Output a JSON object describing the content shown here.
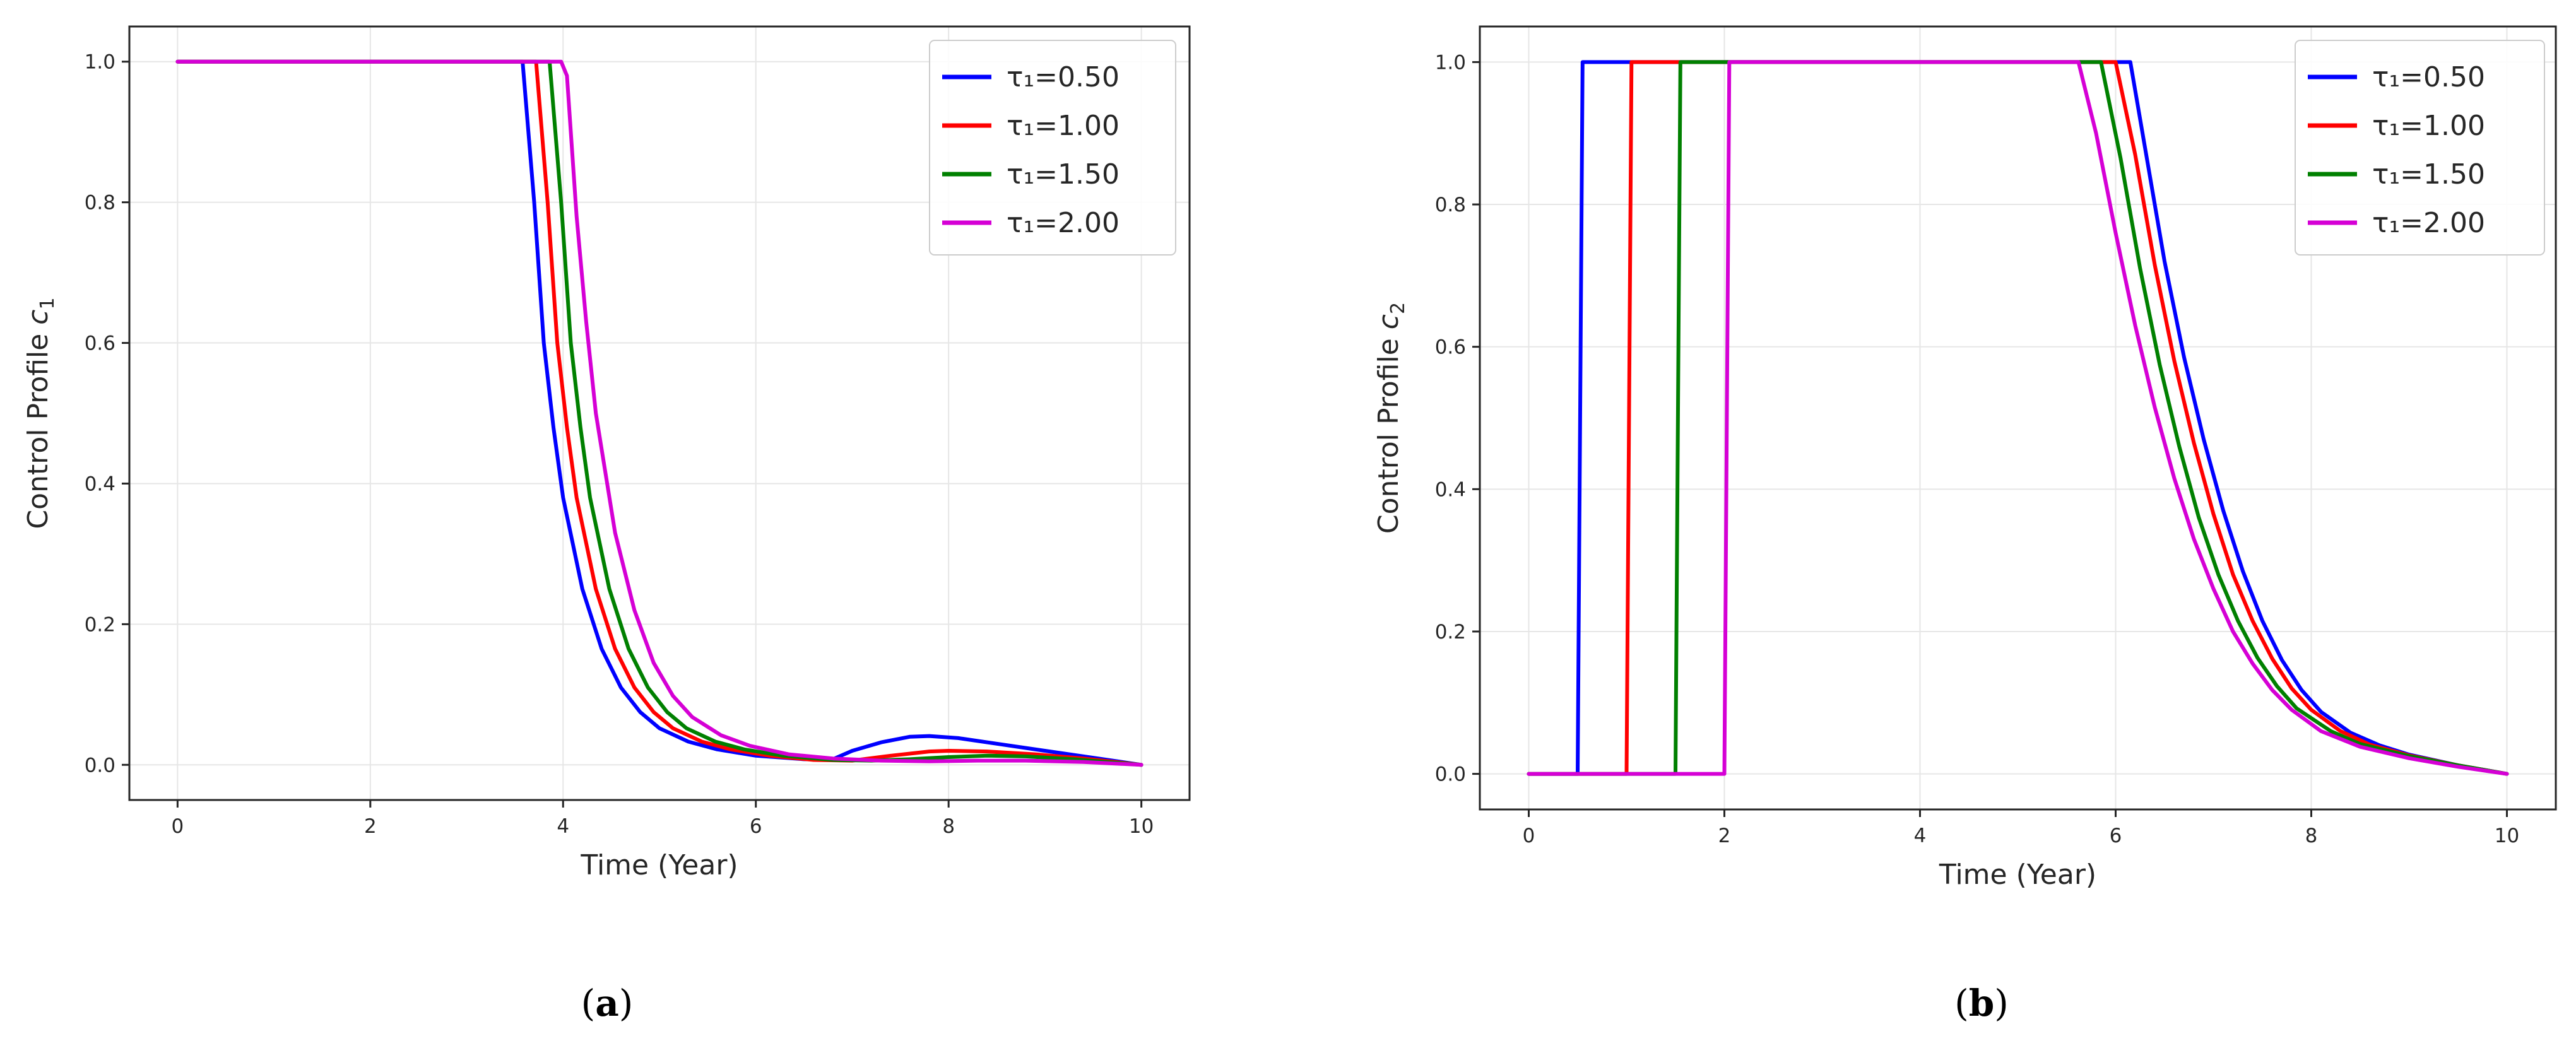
{
  "chart_data": [
    {
      "type": "line",
      "panel_label": "a",
      "xlabel": "Time (Year)",
      "ylabel": "Control Profile",
      "ylabel_symbol": "c",
      "ylabel_subscript": "1",
      "xlim": [
        -0.5,
        10.5
      ],
      "ylim": [
        -0.05,
        1.05
      ],
      "xticks": [
        0,
        2,
        4,
        6,
        8,
        10
      ],
      "yticks": [
        0.0,
        0.2,
        0.4,
        0.6,
        0.8,
        1.0
      ],
      "grid": true,
      "legend_position": "top-right",
      "series": [
        {
          "name": "τ₁=0.50",
          "color": "#0000ff",
          "x": [
            0,
            3.58,
            3.7,
            3.8,
            3.9,
            4.0,
            4.2,
            4.4,
            4.6,
            4.8,
            5.0,
            5.3,
            5.6,
            6.0,
            6.5,
            6.8,
            7.0,
            7.3,
            7.6,
            7.8,
            8.1,
            8.5,
            9.0,
            9.5,
            10.0
          ],
          "y": [
            1.0,
            1.0,
            0.8,
            0.6,
            0.48,
            0.38,
            0.25,
            0.165,
            0.11,
            0.075,
            0.052,
            0.033,
            0.022,
            0.013,
            0.008,
            0.008,
            0.02,
            0.032,
            0.04,
            0.041,
            0.038,
            0.03,
            0.02,
            0.01,
            0.0
          ]
        },
        {
          "name": "τ₁=1.00",
          "color": "#ff0000",
          "x": [
            0,
            3.72,
            3.84,
            3.94,
            4.04,
            4.14,
            4.34,
            4.54,
            4.74,
            4.94,
            5.14,
            5.44,
            5.74,
            6.14,
            6.6,
            7.0,
            7.4,
            7.8,
            8.0,
            8.4,
            8.9,
            9.4,
            10.0
          ],
          "y": [
            1.0,
            1.0,
            0.8,
            0.6,
            0.48,
            0.38,
            0.25,
            0.165,
            0.11,
            0.075,
            0.052,
            0.033,
            0.022,
            0.013,
            0.007,
            0.006,
            0.013,
            0.019,
            0.02,
            0.019,
            0.015,
            0.009,
            0.0
          ]
        },
        {
          "name": "τ₁=1.50",
          "color": "#008000",
          "x": [
            0,
            3.86,
            3.98,
            4.08,
            4.18,
            4.28,
            4.48,
            4.68,
            4.88,
            5.08,
            5.28,
            5.58,
            5.88,
            6.28,
            6.8,
            7.2,
            7.6,
            8.0,
            8.4,
            8.8,
            9.3,
            10.0
          ],
          "y": [
            1.0,
            1.0,
            0.8,
            0.6,
            0.48,
            0.38,
            0.25,
            0.165,
            0.11,
            0.075,
            0.052,
            0.033,
            0.022,
            0.013,
            0.007,
            0.006,
            0.008,
            0.011,
            0.013,
            0.012,
            0.008,
            0.0
          ]
        },
        {
          "name": "τ₁=2.00",
          "color": "#d500d5",
          "x": [
            0,
            3.98,
            4.04,
            4.14,
            4.24,
            4.34,
            4.54,
            4.74,
            4.94,
            5.14,
            5.34,
            5.64,
            5.94,
            6.34,
            6.8,
            7.3,
            7.8,
            8.3,
            8.8,
            9.4,
            10.0
          ],
          "y": [
            1.0,
            1.0,
            0.98,
            0.78,
            0.63,
            0.5,
            0.33,
            0.22,
            0.145,
            0.098,
            0.068,
            0.042,
            0.027,
            0.015,
            0.009,
            0.006,
            0.005,
            0.006,
            0.006,
            0.004,
            0.0
          ]
        }
      ]
    },
    {
      "type": "line",
      "panel_label": "b",
      "xlabel": "Time (Year)",
      "ylabel": "Control Profile",
      "ylabel_symbol": "c",
      "ylabel_subscript": "2",
      "xlim": [
        -0.5,
        10.5
      ],
      "ylim": [
        -0.05,
        1.05
      ],
      "xticks": [
        0,
        2,
        4,
        6,
        8,
        10
      ],
      "yticks": [
        0.0,
        0.2,
        0.4,
        0.6,
        0.8,
        1.0
      ],
      "grid": true,
      "legend_position": "top-right",
      "series": [
        {
          "name": "τ₁=0.50",
          "color": "#0000ff",
          "x": [
            0,
            0.5,
            0.55,
            6.15,
            6.3,
            6.5,
            6.7,
            6.9,
            7.1,
            7.3,
            7.5,
            7.7,
            7.9,
            8.1,
            8.4,
            8.7,
            9.0,
            9.5,
            10.0
          ],
          "y": [
            0.0,
            0.0,
            1.0,
            1.0,
            0.88,
            0.72,
            0.585,
            0.47,
            0.37,
            0.285,
            0.215,
            0.16,
            0.118,
            0.087,
            0.058,
            0.04,
            0.027,
            0.012,
            0.0
          ]
        },
        {
          "name": "τ₁=1.00",
          "color": "#ff0000",
          "x": [
            0,
            1.0,
            1.05,
            6.0,
            6.2,
            6.4,
            6.6,
            6.8,
            7.0,
            7.2,
            7.4,
            7.6,
            7.8,
            8.0,
            8.3,
            8.6,
            9.0,
            9.5,
            10.0
          ],
          "y": [
            0.0,
            0.0,
            1.0,
            1.0,
            0.87,
            0.715,
            0.58,
            0.465,
            0.365,
            0.28,
            0.215,
            0.162,
            0.12,
            0.09,
            0.06,
            0.041,
            0.026,
            0.012,
            0.0
          ]
        },
        {
          "name": "τ₁=1.50",
          "color": "#008000",
          "x": [
            0,
            1.5,
            1.55,
            5.85,
            6.05,
            6.25,
            6.45,
            6.65,
            6.85,
            7.05,
            7.25,
            7.45,
            7.65,
            7.85,
            8.2,
            8.5,
            9.0,
            9.5,
            10.0
          ],
          "y": [
            0.0,
            0.0,
            1.0,
            1.0,
            0.865,
            0.71,
            0.575,
            0.46,
            0.36,
            0.28,
            0.215,
            0.163,
            0.123,
            0.092,
            0.06,
            0.042,
            0.025,
            0.012,
            0.0
          ]
        },
        {
          "name": "τ₁=2.00",
          "color": "#d500d5",
          "x": [
            0,
            2.0,
            2.05,
            5.62,
            5.8,
            6.0,
            6.2,
            6.4,
            6.6,
            6.8,
            7.0,
            7.2,
            7.4,
            7.6,
            7.8,
            8.1,
            8.5,
            9.0,
            9.5,
            10.0
          ],
          "y": [
            0.0,
            0.0,
            1.0,
            1.0,
            0.9,
            0.76,
            0.63,
            0.515,
            0.415,
            0.33,
            0.26,
            0.2,
            0.155,
            0.118,
            0.09,
            0.06,
            0.038,
            0.022,
            0.01,
            0.0
          ]
        }
      ]
    }
  ]
}
